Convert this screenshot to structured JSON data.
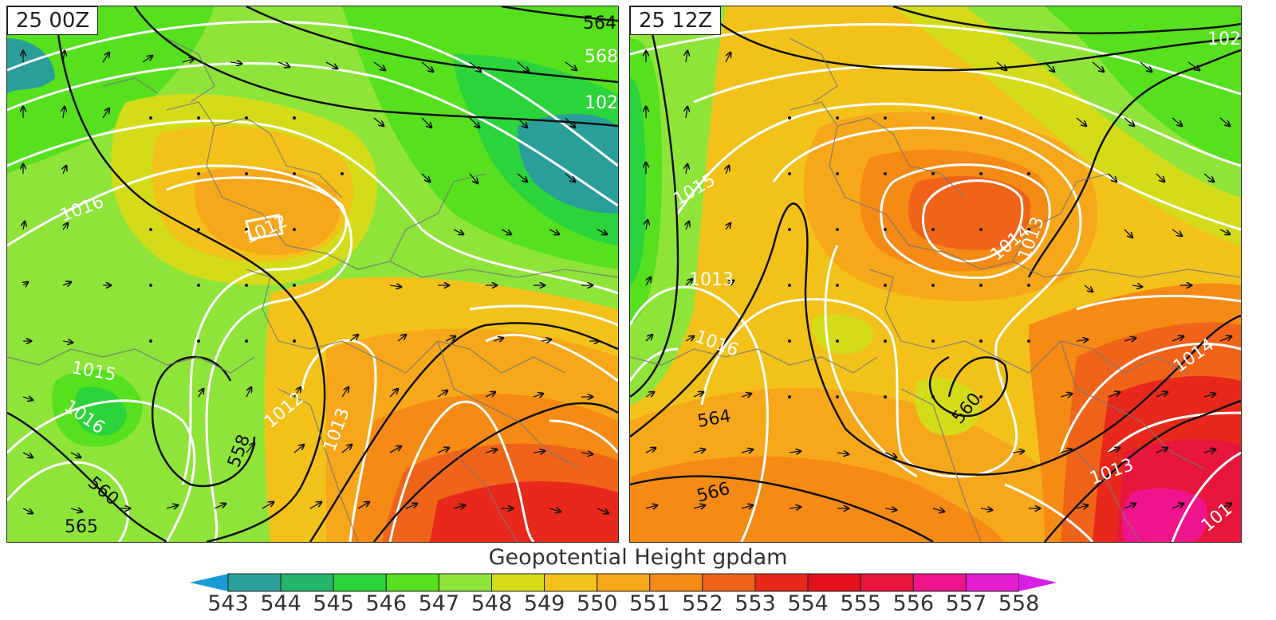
{
  "panels": [
    {
      "time_label": "25 00Z"
    },
    {
      "time_label": "25 12Z"
    }
  ],
  "colorbar": {
    "title": "Geopotential Height gpdam",
    "ticks": [
      "543",
      "544",
      "545",
      "546",
      "547",
      "548",
      "549",
      "550",
      "551",
      "552",
      "553",
      "554",
      "555",
      "556",
      "557",
      "558"
    ],
    "colors": [
      "#1a9ad6",
      "#2a9f9a",
      "#25b56a",
      "#2bd43a",
      "#56e01e",
      "#8fe43a",
      "#d4dc1a",
      "#f2c21a",
      "#f7a81a",
      "#f58a14",
      "#f0641a",
      "#e8281a",
      "#e5101e",
      "#e8163c",
      "#f0148c",
      "#e61ed2",
      "#d61ee6"
    ]
  },
  "contour_labels": {
    "left": [
      "1012",
      "1015",
      "1016",
      "1012",
      "1016",
      "1013",
      "558",
      "564",
      "568",
      "102",
      "560",
      "565"
    ],
    "right": [
      "1015",
      "1013",
      "1016",
      "1014",
      "1013",
      "1013",
      "564",
      "566",
      "560",
      "102",
      "1014",
      "101"
    ]
  }
}
